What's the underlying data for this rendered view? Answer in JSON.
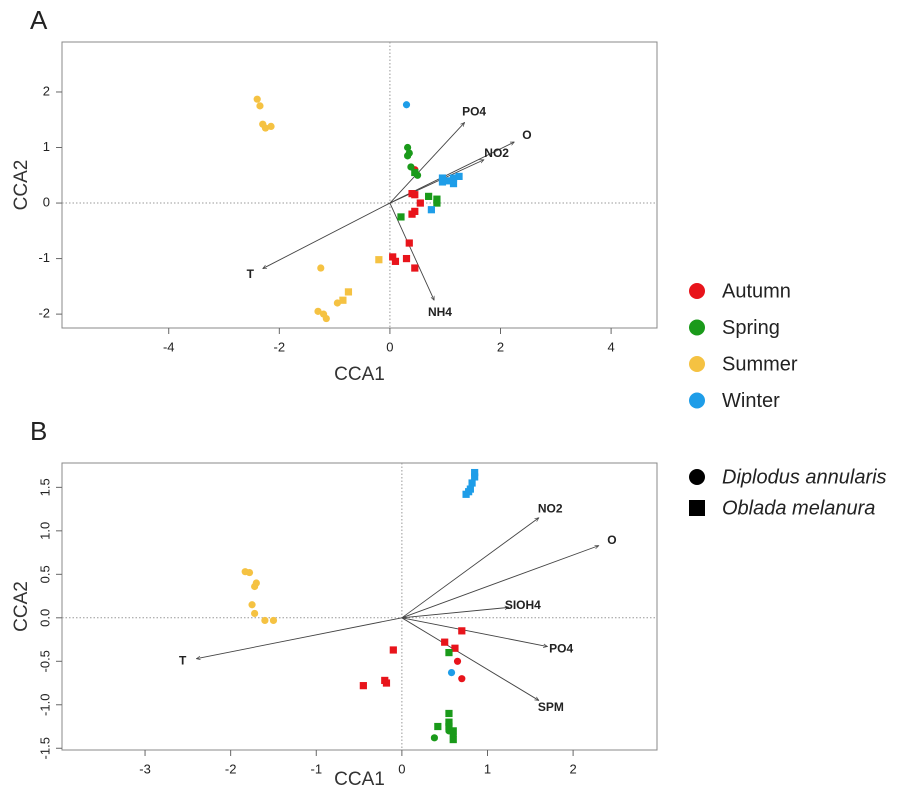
{
  "chart_data": [
    {
      "type": "scatter",
      "title": "A",
      "xlabel": "CCA1",
      "ylabel": "CCA2",
      "xlim": [
        -5.93,
        4.83
      ],
      "ylim": [
        -2.25,
        2.9
      ],
      "xticks": [
        -4,
        -2,
        0,
        2,
        4
      ],
      "yticks": [
        -2,
        -1,
        0,
        1,
        2
      ],
      "zero_lines": true,
      "series": [
        {
          "color": "#e8141b",
          "marker": "circle",
          "x": [
            0.45
          ],
          "y": [
            0.6
          ]
        },
        {
          "color": "#e8141b",
          "marker": "square",
          "x": [
            0.4,
            0.45,
            0.55,
            0.45,
            0.4,
            0.35,
            0.05,
            0.1,
            0.3,
            0.45
          ],
          "y": [
            0.17,
            0.15,
            0.0,
            -0.15,
            -0.2,
            -0.72,
            -0.97,
            -1.05,
            -1.0,
            -1.17
          ]
        },
        {
          "color": "#1a9a1a",
          "marker": "circle",
          "x": [
            0.32,
            0.35,
            0.32,
            0.38,
            0.5
          ],
          "y": [
            1.0,
            0.9,
            0.85,
            0.65,
            0.5
          ]
        },
        {
          "color": "#1a9a1a",
          "marker": "square",
          "x": [
            0.45,
            0.7,
            0.85,
            0.85,
            0.2
          ],
          "y": [
            0.55,
            0.12,
            0.07,
            0.0,
            -0.25
          ]
        },
        {
          "color": "#f5c242",
          "marker": "circle",
          "x": [
            -2.4,
            -2.35,
            -2.3,
            -2.25,
            -2.15,
            -1.25,
            -1.3,
            -1.2,
            -1.15,
            -0.95
          ],
          "y": [
            1.87,
            1.75,
            1.42,
            1.35,
            1.38,
            -1.17,
            -1.95,
            -2.0,
            -2.08,
            -1.8
          ]
        },
        {
          "color": "#f5c242",
          "marker": "square",
          "x": [
            -0.85,
            -0.75,
            -0.2
          ],
          "y": [
            -1.75,
            -1.6,
            -1.02
          ]
        },
        {
          "color": "#1e9de8",
          "marker": "circle",
          "x": [
            0.3
          ],
          "y": [
            1.77
          ]
        },
        {
          "color": "#1e9de8",
          "marker": "square",
          "x": [
            0.95,
            1.05,
            1.15,
            1.25,
            1.15,
            0.95,
            0.75
          ],
          "y": [
            0.45,
            0.4,
            0.45,
            0.48,
            0.35,
            0.38,
            -0.12
          ]
        }
      ],
      "vectors": [
        {
          "label": "PO4",
          "x": 1.35,
          "y": 1.45
        },
        {
          "label": "O",
          "x": 2.25,
          "y": 1.1
        },
        {
          "label": "NO2",
          "x": 1.7,
          "y": 0.78
        },
        {
          "label": "NH4",
          "x": 0.8,
          "y": -1.75
        },
        {
          "label": "T",
          "x": -2.3,
          "y": -1.18
        }
      ]
    },
    {
      "type": "scatter",
      "title": "B",
      "xlabel": "CCA1",
      "ylabel": "CCA2",
      "xlim": [
        -3.97,
        2.98
      ],
      "ylim": [
        -1.52,
        1.78
      ],
      "xticks": [
        -3,
        -2,
        -1,
        0,
        1,
        2
      ],
      "yticks": [
        {
          "value": -1.5,
          "label": "-1.5"
        },
        {
          "value": -1,
          "label": "-1.0"
        },
        {
          "value": -0.5,
          "label": "-0.5"
        },
        {
          "value": 0,
          "label": "0.0"
        },
        {
          "value": 0.5,
          "label": "0.5"
        },
        {
          "value": 1,
          "label": "1.0"
        },
        {
          "value": 1.5,
          "label": "1.5"
        }
      ],
      "zero_lines": true,
      "series": [
        {
          "color": "#e8141b",
          "marker": "circle",
          "x": [
            0.65,
            0.7
          ],
          "y": [
            -0.5,
            -0.7
          ]
        },
        {
          "color": "#e8141b",
          "marker": "square",
          "x": [
            -0.45,
            -0.2,
            -0.18,
            -0.1,
            0.5,
            0.62,
            0.7
          ],
          "y": [
            -0.78,
            -0.72,
            -0.75,
            -0.37,
            -0.28,
            -0.35,
            -0.15
          ]
        },
        {
          "color": "#1a9a1a",
          "marker": "circle",
          "x": [
            0.38,
            0.6,
            0.55
          ],
          "y": [
            -1.38,
            -1.35,
            -1.3
          ]
        },
        {
          "color": "#1a9a1a",
          "marker": "square",
          "x": [
            0.55,
            0.55,
            0.42,
            0.55,
            0.6,
            0.6,
            0.55
          ],
          "y": [
            -0.4,
            -1.1,
            -1.25,
            -1.25,
            -1.3,
            -1.4,
            -1.2
          ]
        },
        {
          "color": "#f5c242",
          "marker": "circle",
          "x": [
            -1.83,
            -1.78,
            -1.7,
            -1.72,
            -1.75,
            -1.72,
            -1.6,
            -1.5
          ],
          "y": [
            0.53,
            0.52,
            0.4,
            0.36,
            0.15,
            0.05,
            -0.03,
            -0.03
          ]
        },
        {
          "color": "#1e9de8",
          "marker": "circle",
          "x": [
            0.58
          ],
          "y": [
            -0.63
          ]
        },
        {
          "color": "#1e9de8",
          "marker": "square",
          "x": [
            0.75,
            0.78,
            0.8,
            0.82,
            0.85,
            0.85
          ],
          "y": [
            1.42,
            1.45,
            1.48,
            1.55,
            1.62,
            1.67
          ]
        }
      ],
      "vectors": [
        {
          "label": "NO2",
          "x": 1.6,
          "y": 1.15
        },
        {
          "label": "O",
          "x": 2.3,
          "y": 0.83
        },
        {
          "label": "SIOH4",
          "x": 1.25,
          "y": 0.12
        },
        {
          "label": "PO4",
          "x": 1.7,
          "y": -0.33
        },
        {
          "label": "SPM",
          "x": 1.6,
          "y": -0.95
        },
        {
          "label": "T",
          "x": -2.4,
          "y": -0.47
        }
      ]
    }
  ],
  "legend": {
    "colors": [
      {
        "name": "Autumn",
        "color": "#e8141b"
      },
      {
        "name": "Spring",
        "color": "#1a9a1a"
      },
      {
        "name": "Summer",
        "color": "#f5c242"
      },
      {
        "name": "Winter",
        "color": "#1e9de8"
      }
    ],
    "markers": [
      {
        "name": "Diplodus annularis",
        "marker": "circle"
      },
      {
        "name": "Oblada melanura",
        "marker": "square"
      }
    ]
  }
}
